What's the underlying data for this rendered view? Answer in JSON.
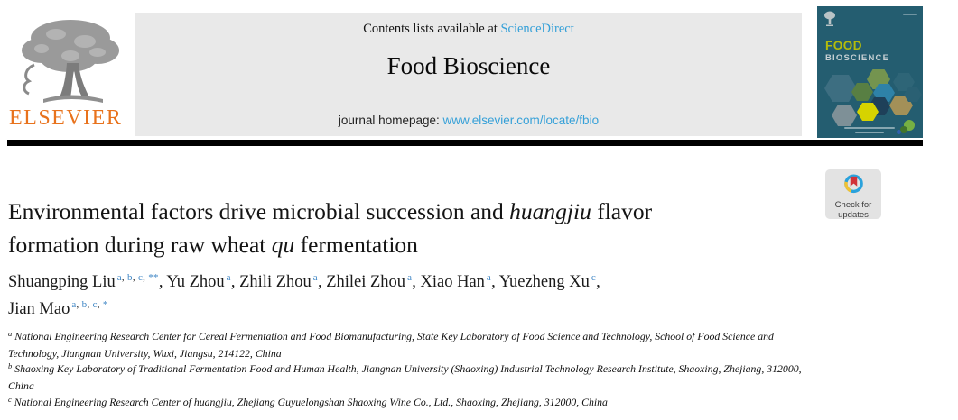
{
  "masthead": {
    "publisher": "ELSEVIER",
    "contents_line": {
      "prefix": "Contents lists available at ",
      "link": "ScienceDirect"
    },
    "journal_title": "Food Bioscience",
    "homepage_line": {
      "prefix": "journal homepage: ",
      "link": "www.elsevier.com/locate/fbio"
    }
  },
  "cover": {
    "title_line1": "FOOD",
    "title_line2": "BIOSCIENCE"
  },
  "badge": {
    "line1": "Check for",
    "line2": "updates"
  },
  "article": {
    "title": {
      "l1_pre": "Environmental factors drive microbial succession and ",
      "l1_em": "huangjiu",
      "l1_post": " flavor",
      "l2_pre": "formation during raw wheat ",
      "l2_em": "qu",
      "l2_post": " fermentation"
    }
  },
  "authors": {
    "line1": [
      {
        "name": "Shuangping Liu",
        "sups": [
          "a",
          "b",
          "c",
          "**"
        ],
        "sep": ", "
      },
      {
        "name": "Yu Zhou",
        "sups": [
          "a"
        ],
        "sep": ", "
      },
      {
        "name": "Zhili Zhou",
        "sups": [
          "a"
        ],
        "sep": ", "
      },
      {
        "name": "Zhilei Zhou",
        "sups": [
          "a"
        ],
        "sep": ", "
      },
      {
        "name": "Xiao Han",
        "sups": [
          "a"
        ],
        "sep": ", "
      },
      {
        "name": "Yuezheng Xu",
        "sups": [
          "c"
        ],
        "sep": ","
      }
    ],
    "line2": [
      {
        "name": "Jian Mao",
        "sups": [
          "a",
          "b",
          "c",
          "*"
        ],
        "sep": ""
      }
    ]
  },
  "affiliations": {
    "items": [
      {
        "label": "a",
        "text": " National Engineering Research Center for Cereal Fermentation and Food Biomanufacturing, State Key Laboratory of Food Science and Technology, School of Food Science and Technology, Jiangnan University, Wuxi, Jiangsu, 214122, China"
      },
      {
        "label": "b",
        "text": " Shaoxing Key Laboratory of Traditional Fermentation Food and Human Health, Jiangnan University (Shaoxing) Industrial Technology Research Institute, Shaoxing, Zhejiang, 312000, China"
      },
      {
        "label": "c",
        "text": " National Engineering Research Center of huangjiu, Zhejiang Guyuelongshan Shaoxing Wine Co., Ltd., Shaoxing, Zhejiang, 312000, China"
      }
    ]
  },
  "colors": {
    "elsevier_orange": "#e8721c",
    "link_blue": "#35a0d8",
    "superscript_blue": "#3f86c5",
    "masthead_gray": "#e9e9e9",
    "cover_teal": "#245d70",
    "cover_food_yellow": "#b4bc0a",
    "rule_black": "#000000",
    "badge_gray": "#e3e3e3",
    "crossmark_blue": "#2aa2dc",
    "crossmark_yellow": "#f2c233",
    "crossmark_red": "#d13239"
  }
}
